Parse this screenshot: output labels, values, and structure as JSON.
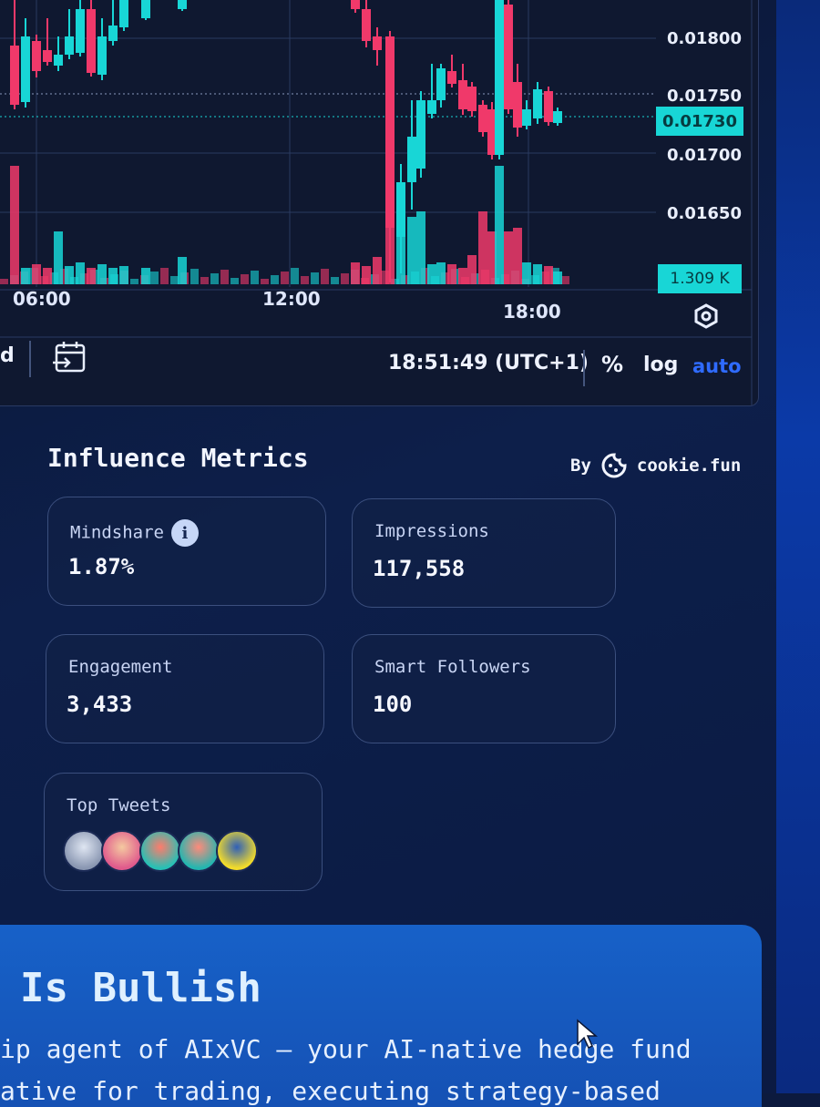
{
  "chart": {
    "price_axis": [
      "0.01800",
      "0.01750",
      "0.01700",
      "0.01650"
    ],
    "current_price": "0.01730",
    "volume_badge": "1.309 K",
    "time_axis": [
      "06:00",
      "12:00",
      "18:00"
    ],
    "colors": {
      "up": "#18d6d6",
      "down": "#f0396a",
      "accent": "#18d6d6"
    }
  },
  "toolbar": {
    "interval_suffix": "d",
    "clock": "18:51:49 (UTC+1)",
    "percent_label": "%",
    "log_label": "log",
    "auto_label": "auto"
  },
  "metrics": {
    "title": "Influence Metrics",
    "by_label": "By",
    "provider": "cookie.fun",
    "mindshare": {
      "label": "Mindshare",
      "value": "1.87%"
    },
    "impressions": {
      "label": "Impressions",
      "value": "117,558"
    },
    "engagement": {
      "label": "Engagement",
      "value": "3,433"
    },
    "smart_followers": {
      "label": "Smart Followers",
      "value": "100"
    },
    "top_tweets": {
      "label": "Top Tweets"
    }
  },
  "banner": {
    "title": "Is Bullish",
    "line1": "ip agent of AIxVC — your AI-native hedge fund",
    "line2": "ative for trading, executing strategy-based"
  }
}
